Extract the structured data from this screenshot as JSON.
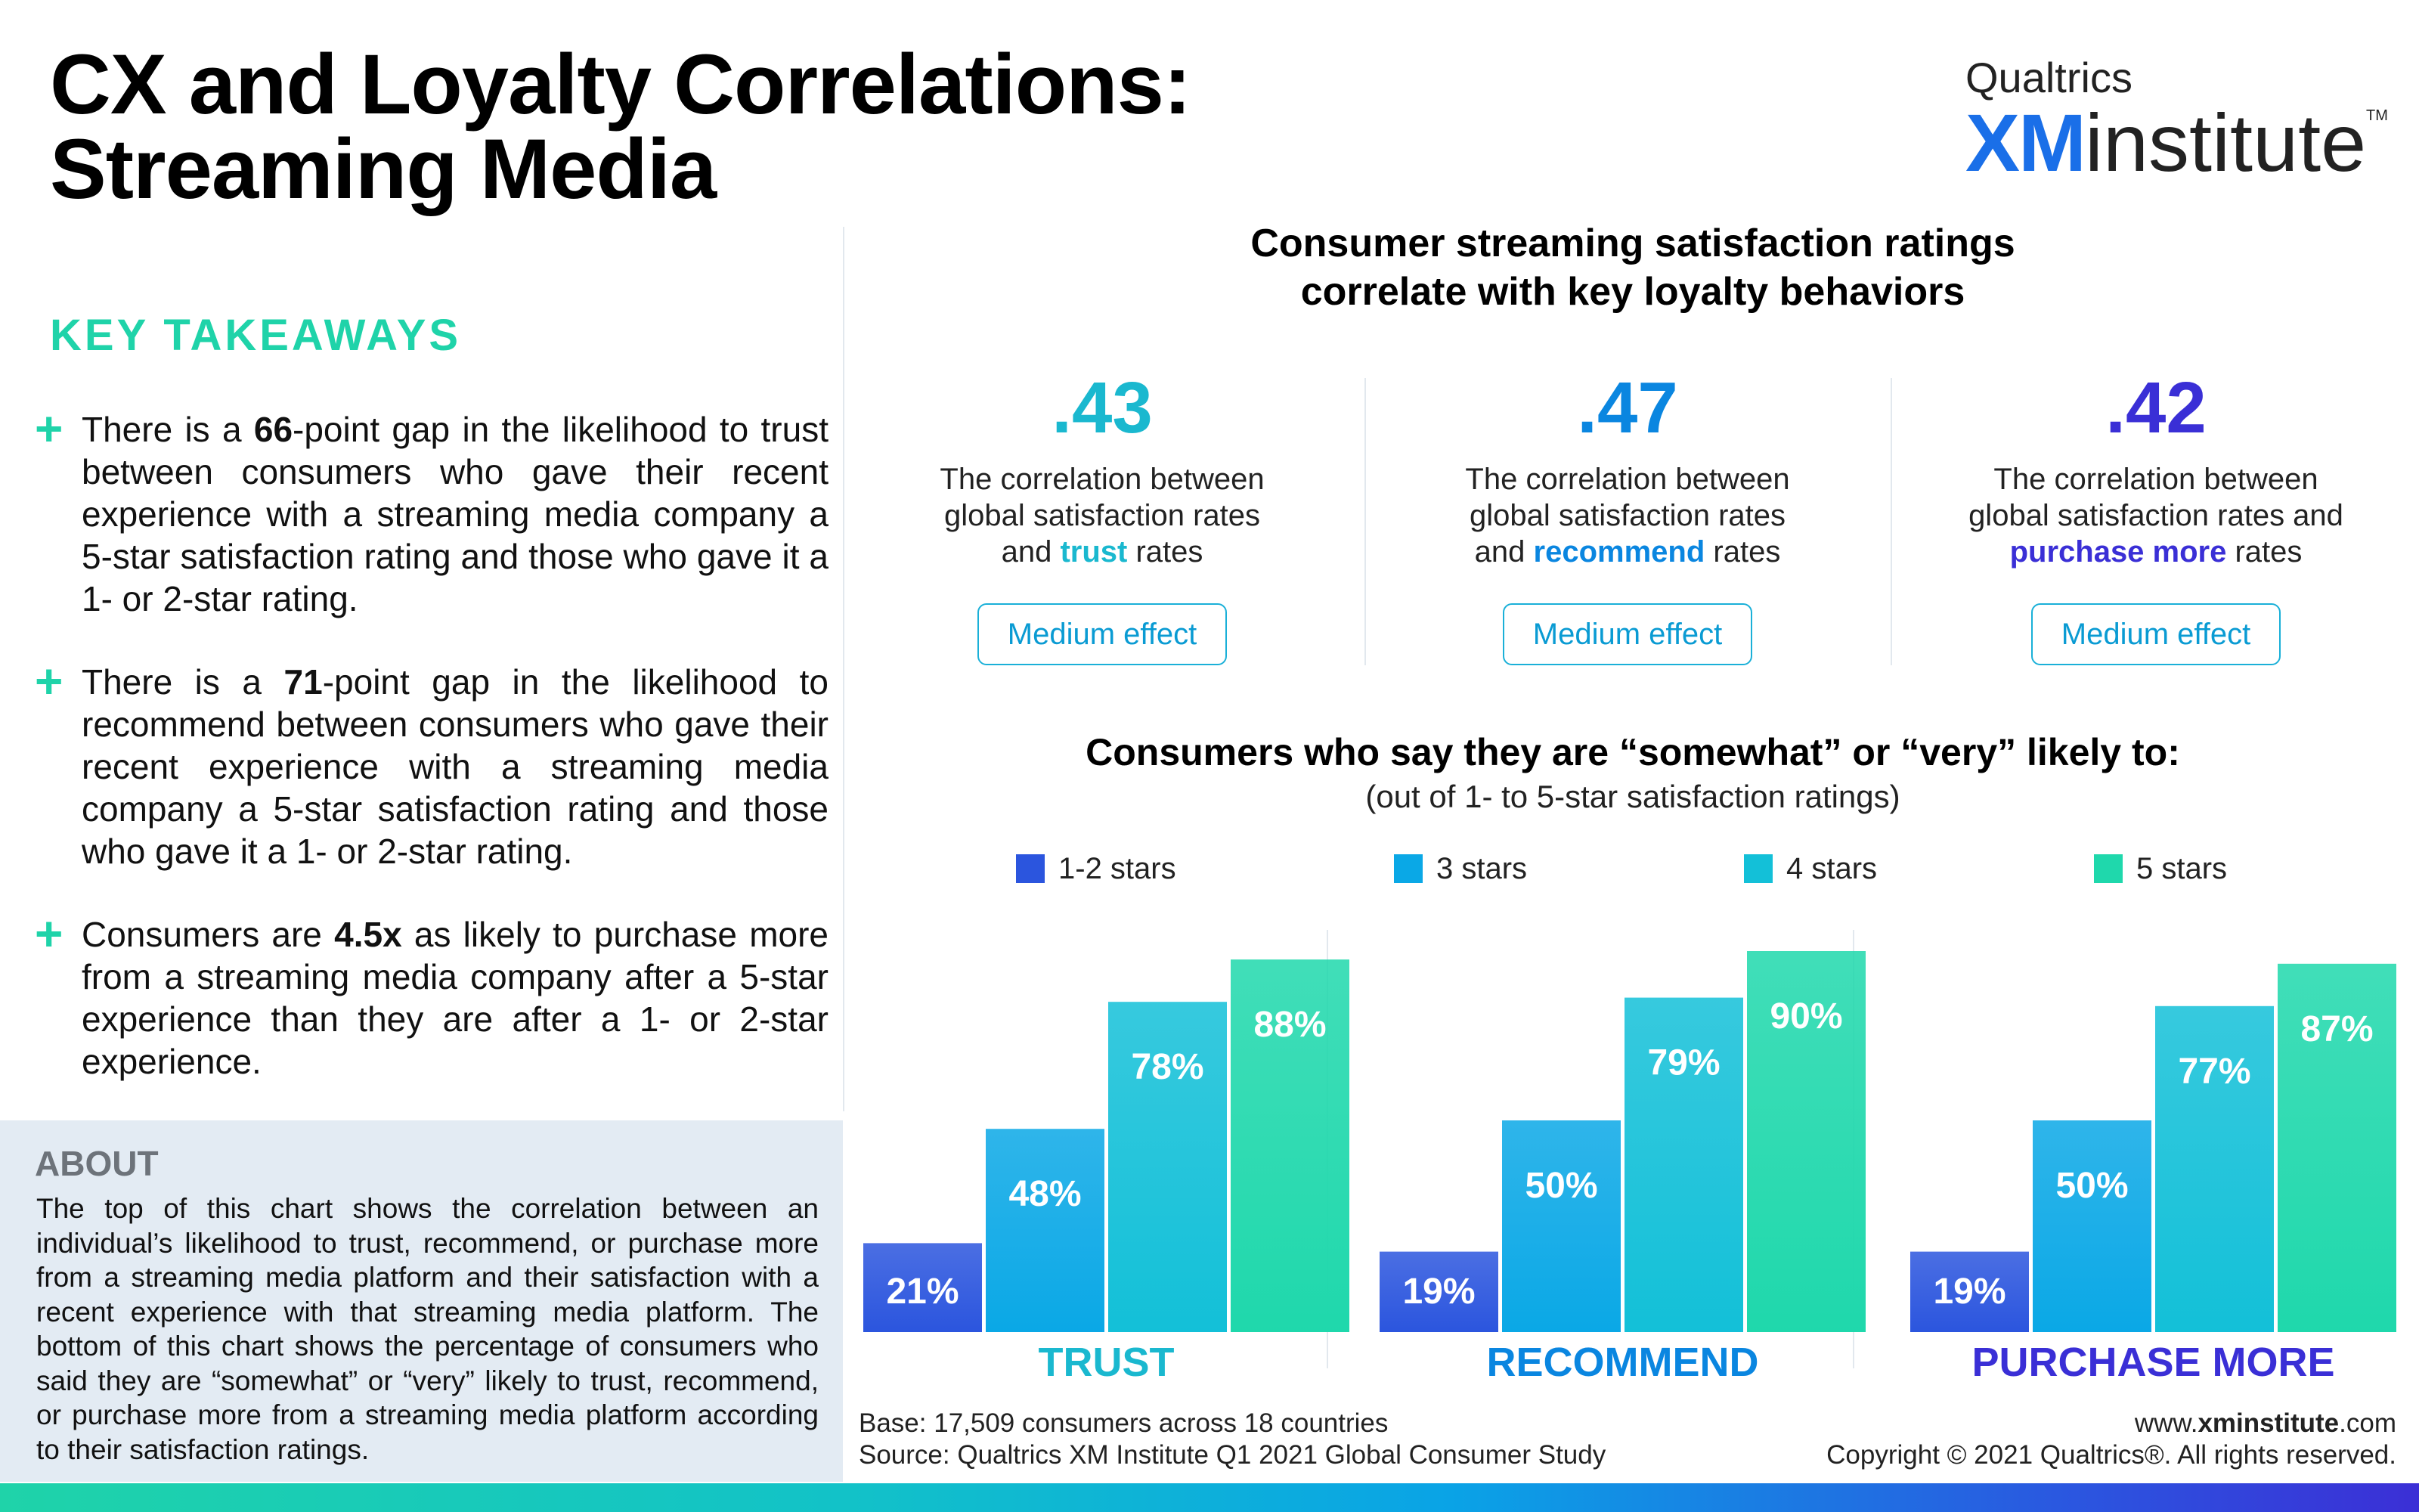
{
  "title": {
    "line1": "CX and Loyalty Correlations:",
    "line2": "Streaming Media"
  },
  "logo": {
    "top": "Qualtrics",
    "xm": "XM",
    "institute": "institute",
    "tm": "TM"
  },
  "key_takeaways": {
    "heading": "KEY TAKEAWAYS",
    "items": [
      {
        "pre": "There is a ",
        "bold": "66",
        "post": "-point gap in the likelihood to trust between consumers who gave their recent experience with a streaming media company a 5-star satisfaction rating and those who gave it a 1- or 2-star rating."
      },
      {
        "pre": "There is a ",
        "bold": "71",
        "post": "-point gap in the likelihood to recommend between consumers who gave their recent experience with a streaming media company a 5-star satisfaction rating and those who gave it a 1- or 2-star rating."
      },
      {
        "pre": "Consumers are ",
        "bold": "4.5x",
        "post": " as likely to purchase more from a streaming media company after a 5-star experience than they are after a 1- or 2-star experience."
      }
    ]
  },
  "about": {
    "heading": "ABOUT",
    "text": "The top of this chart shows the correlation between an individual’s likelihood to trust, recommend, or purchase more from a streaming media platform and their satisfaction with a recent experience with that streaming media platform. The bottom of this chart shows the percentage of consumers who said they are “somewhat” or “very” likely to trust, recommend, or purchase more from a streaming media platform according to their satisfaction ratings."
  },
  "right_heading": {
    "line1": "Consumer streaming satisfaction ratings",
    "line2": "correlate with key loyalty behaviors"
  },
  "correlations": [
    {
      "value": ".43",
      "line1": "The correlation between",
      "line2": "global satisfaction rates",
      "line3_pre": "and ",
      "keyword": "trust",
      "line3_post": " rates",
      "effect_a": "Medium",
      "effect_b": " effect",
      "color": "#1ab8cf"
    },
    {
      "value": ".47",
      "line1": "The correlation between",
      "line2": "global satisfaction rates",
      "line3_pre": "and ",
      "keyword": "recommend",
      "line3_post": " rates",
      "effect_a": "Medium",
      "effect_b": " effect",
      "color": "#0a86e0"
    },
    {
      "value": ".42",
      "line1": "The correlation between",
      "line2": "global satisfaction rates and",
      "line3_pre": "",
      "keyword": "purchase more",
      "line3_post": " rates",
      "effect_a": "Medium",
      "effect_b": " effect",
      "color": "#3a2fd6"
    }
  ],
  "chart_heading": "Consumers who say they are “somewhat” or “very” likely to:",
  "chart_subheading": "(out of 1- to 5-star satisfaction ratings)",
  "chart_data": {
    "type": "bar",
    "categories": [
      "TRUST",
      "RECOMMEND",
      "PURCHASE MORE"
    ],
    "category_colors": [
      "#1ab8cf",
      "#0a86e0",
      "#3a2fd6"
    ],
    "series": [
      {
        "name": "1-2 stars",
        "values": [
          21,
          19,
          19
        ],
        "color": "#2b55de"
      },
      {
        "name": "3 stars",
        "values": [
          48,
          50,
          50
        ],
        "color": "#0aa8e6"
      },
      {
        "name": "4 stars",
        "values": [
          78,
          79,
          77
        ],
        "color": "#13c0d8"
      },
      {
        "name": "5 stars",
        "values": [
          88,
          90,
          87
        ],
        "color": "#1fd8ac"
      }
    ],
    "value_suffix": "%",
    "ylim": [
      0,
      100
    ],
    "grid": false,
    "legend": "top"
  },
  "footer": {
    "base": "Base: 17,509 consumers across 18 countries",
    "source": "Source: Qualtrics XM Institute Q1 2021 Global Consumer Study",
    "url_pre": "www.",
    "url_bold": "xminstitute",
    "url_post": ".com",
    "copyright": "Copyright © 2021 Qualtrics®. All rights reserved."
  }
}
